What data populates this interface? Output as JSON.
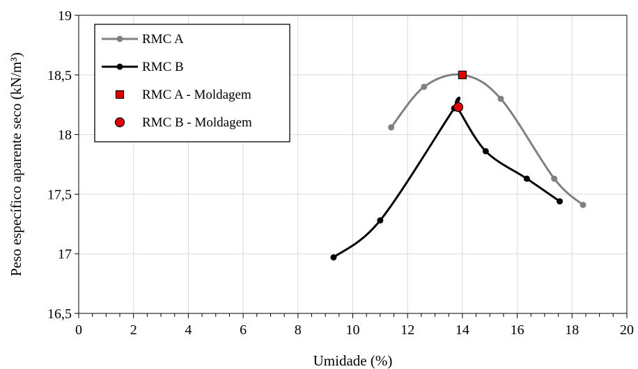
{
  "chart_data": {
    "type": "scatter",
    "xlabel": "Umidade (%)",
    "ylabel": "Peso específico aparente seco (kN/m³)",
    "xlim": [
      0,
      20
    ],
    "ylim": [
      16.5,
      19
    ],
    "xticks": [
      0,
      2,
      4,
      6,
      8,
      10,
      12,
      14,
      16,
      18,
      20
    ],
    "xtick_labels": [
      "0",
      "2",
      "4",
      "6",
      "8",
      "10",
      "12",
      "14",
      "16",
      "18",
      "20"
    ],
    "yticks": [
      16.5,
      17,
      17.5,
      18,
      18.5,
      19
    ],
    "ytick_labels": [
      "16,5",
      "17",
      "17,5",
      "18",
      "18,5",
      "19"
    ],
    "grid": true,
    "legend_position": "top-left",
    "series": [
      {
        "name": "RMC A",
        "style": "smooth-line-marker",
        "color": "#808080",
        "points": [
          [
            11.4,
            18.06
          ],
          [
            12.6,
            18.4
          ],
          [
            14.0,
            18.5
          ],
          [
            15.4,
            18.3
          ],
          [
            17.35,
            17.63
          ],
          [
            18.4,
            17.41
          ]
        ]
      },
      {
        "name": "RMC B",
        "style": "smooth-line-marker",
        "color": "#000000",
        "points": [
          [
            9.3,
            16.97
          ],
          [
            11.0,
            17.28
          ],
          [
            13.7,
            18.22
          ],
          [
            13.8,
            18.23
          ],
          [
            14.85,
            17.86
          ],
          [
            16.35,
            17.63
          ],
          [
            17.55,
            17.44
          ]
        ]
      },
      {
        "name": "RMC A - Moldagem",
        "style": "square-marker",
        "color": "#e00000",
        "points": [
          [
            14.0,
            18.5
          ]
        ]
      },
      {
        "name": "RMC B - Moldagem",
        "style": "circle-marker",
        "color": "#e00000",
        "points": [
          [
            13.85,
            18.23
          ]
        ]
      }
    ]
  }
}
